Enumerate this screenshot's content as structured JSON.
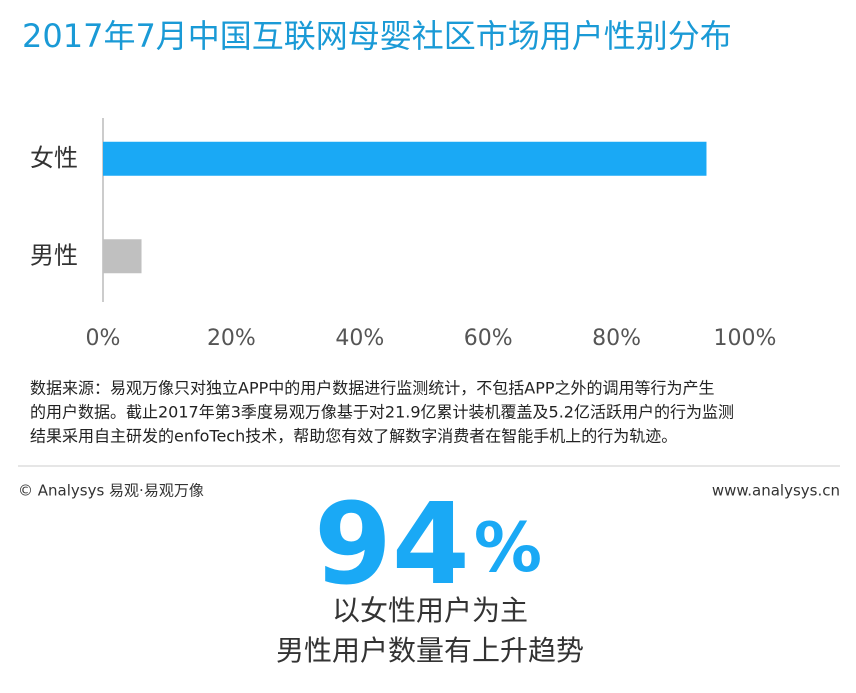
{
  "chart_data": {
    "type": "bar",
    "orientation": "horizontal",
    "title": "2017年7月中国互联网母婴社区市场用户性别分布",
    "categories": [
      "女性",
      "男性"
    ],
    "values": [
      94,
      6
    ],
    "colors": [
      "#1aa9f5",
      "#c0c0c0"
    ],
    "xlim": [
      0,
      100
    ],
    "xticks": [
      {
        "value": 0,
        "label": "0%"
      },
      {
        "value": 20,
        "label": "20%"
      },
      {
        "value": 40,
        "label": "40%"
      },
      {
        "value": 60,
        "label": "60%"
      },
      {
        "value": 80,
        "label": "80%"
      },
      {
        "value": 100,
        "label": "100%"
      }
    ]
  },
  "source_lines": [
    "数据来源：易观万像只对独立APP中的用户数据进行监测统计，不包括APP之外的调用等行为产生",
    "的用户数据。截止2017年第3季度易观万像基于对21.9亿累计装机覆盖及5.2亿活跃用户的行为监测",
    "结果采用自主研发的enfoTech技术，帮助您有效了解数字消费者在智能手机上的行为轨迹。"
  ],
  "footer": {
    "copyright": "© Analysys 易观·易观万像",
    "website": "www.analysys.cn"
  },
  "highlight": {
    "number": "94",
    "unit": "%",
    "lines": [
      "以女性用户为主",
      "男性用户数量有上升趋势"
    ]
  }
}
